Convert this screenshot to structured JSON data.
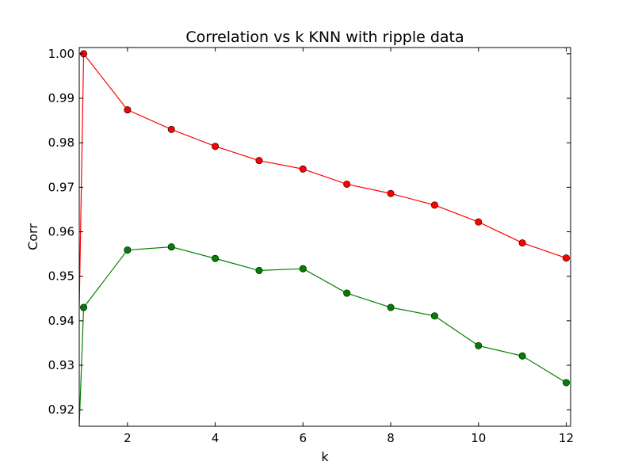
{
  "chart_data": {
    "type": "line",
    "title": "Correlation vs k KNN with ripple data",
    "xlabel": "k",
    "ylabel": "Corr",
    "xlim": [
      0.9,
      12.1
    ],
    "ylim": [
      0.9163,
      1.0014
    ],
    "xticks": [
      2,
      4,
      6,
      8,
      10,
      12
    ],
    "yticks": [
      0.92,
      0.93,
      0.94,
      0.95,
      0.96,
      0.97,
      0.98,
      0.99,
      1.0
    ],
    "ytick_labels": [
      "0.92",
      "0.93",
      "0.94",
      "0.95",
      "0.96",
      "0.97",
      "0.98",
      "0.99",
      "1.00"
    ],
    "grid": false,
    "legend": "none",
    "series": [
      {
        "color": "#ff0000",
        "marker_color": "#ff0000",
        "x": [
          1,
          2,
          3,
          4,
          5,
          6,
          7,
          8,
          9,
          10,
          11,
          12
        ],
        "y": [
          1.0,
          0.9874,
          0.983,
          0.9792,
          0.976,
          0.9741,
          0.9707,
          0.9686,
          0.966,
          0.9622,
          0.9575,
          0.9541
        ],
        "line_start": [
          0.9,
          0.943
        ]
      },
      {
        "color": "#008000",
        "marker_color": "#008000",
        "x": [
          1,
          2,
          3,
          4,
          5,
          6,
          7,
          8,
          9,
          10,
          11,
          12
        ],
        "y": [
          0.943,
          0.9559,
          0.9566,
          0.954,
          0.9513,
          0.9517,
          0.9462,
          0.943,
          0.9411,
          0.9344,
          0.9321,
          0.9261
        ],
        "line_start": [
          0.9,
          0.9163
        ]
      }
    ]
  }
}
